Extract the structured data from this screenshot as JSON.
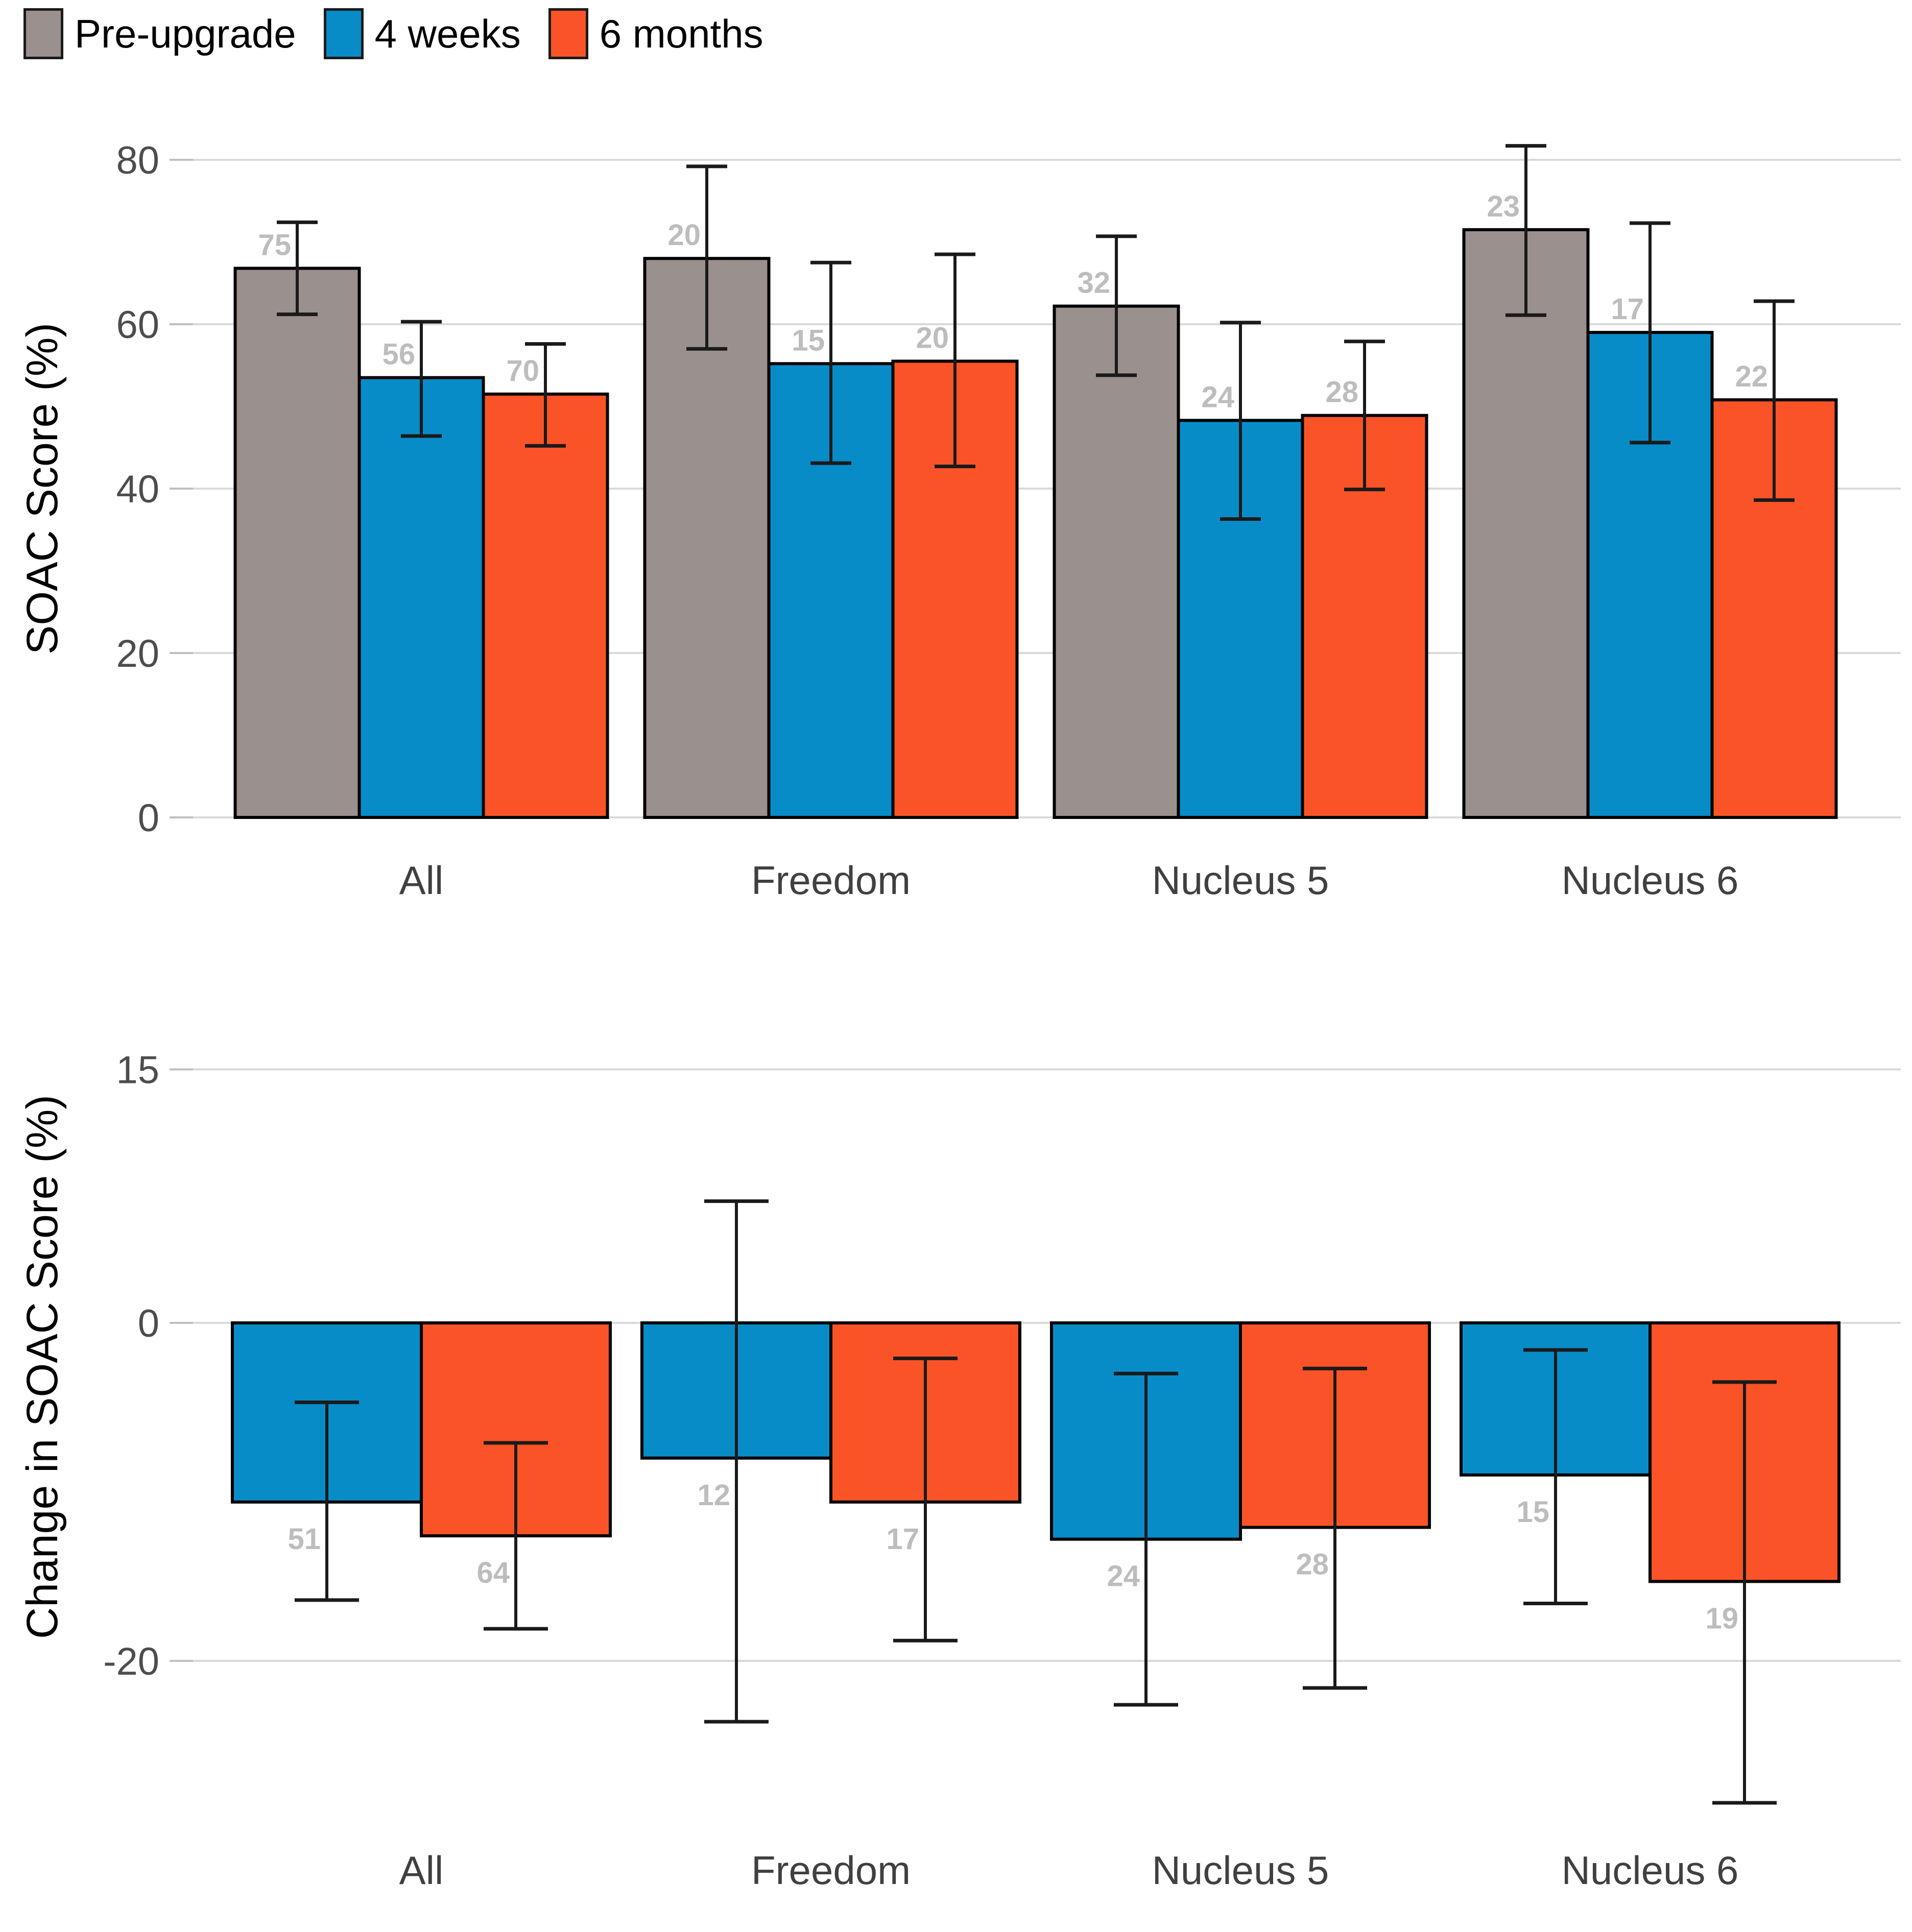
{
  "page": {
    "background": "#FFFFFF"
  },
  "legend": {
    "items": [
      {
        "label": "Pre-upgrade",
        "color": "#9A908D"
      },
      {
        "label": "4 weeks",
        "color": "#088CC8"
      },
      {
        "label": "6 months",
        "color": "#FA5327"
      }
    ]
  },
  "colors": {
    "gridline": "#D9D9D9",
    "tick_mark": "#BFBFBF",
    "tick_text": "#4D4D4D",
    "category_text": "#404040",
    "axis_title_text": "#000000",
    "bar_outline": "#000000",
    "error_bar": "#1A1A1A",
    "n_label": "#BDBDBD"
  },
  "chart_data": [
    {
      "type": "bar",
      "title": "",
      "xlabel": "",
      "ylabel": "SOAC Score (%)",
      "legend_position": "top-left",
      "grid": true,
      "categories": [
        "All",
        "Freedom",
        "Nucleus 5",
        "Nucleus 6"
      ],
      "yticks": [
        0,
        20,
        40,
        60,
        80
      ],
      "ylim": [
        0,
        85.5
      ],
      "series": [
        {
          "name": "Pre-upgrade",
          "color": "#9A908D",
          "values": [
            66.8,
            68.0,
            62.2,
            71.5
          ],
          "err_low": [
            61.2,
            57.0,
            53.8,
            61.1
          ],
          "err_high": [
            72.4,
            79.2,
            70.7,
            81.7
          ],
          "n": [
            75,
            20,
            32,
            23
          ]
        },
        {
          "name": "4 weeks",
          "color": "#088CC8",
          "values": [
            53.5,
            55.2,
            48.3,
            59.0
          ],
          "err_low": [
            46.4,
            43.1,
            36.3,
            45.6
          ],
          "err_high": [
            60.3,
            67.5,
            60.2,
            72.3
          ],
          "n": [
            56,
            15,
            24,
            17
          ]
        },
        {
          "name": "6 months",
          "color": "#FA5327",
          "values": [
            51.5,
            55.5,
            48.9,
            50.8
          ],
          "err_low": [
            45.2,
            42.7,
            39.9,
            38.6
          ],
          "err_high": [
            57.6,
            68.5,
            57.9,
            62.8
          ],
          "n": [
            70,
            20,
            28,
            22
          ]
        }
      ]
    },
    {
      "type": "bar",
      "title": "",
      "xlabel": "",
      "ylabel": "Change in SOAC Score (%)",
      "legend_position": "none",
      "grid": true,
      "categories": [
        "All",
        "Freedom",
        "Nucleus 5",
        "Nucleus 6"
      ],
      "yticks": [
        15,
        0,
        -20
      ],
      "ylim": [
        17.5,
        -33
      ],
      "series": [
        {
          "name": "4 weeks",
          "color": "#088CC8",
          "values": [
            -10.6,
            -8.0,
            -12.8,
            -9.0
          ],
          "err_low": [
            -16.4,
            -23.6,
            -22.6,
            -16.6
          ],
          "err_high": [
            -4.7,
            7.2,
            -3.0,
            -1.6
          ],
          "n": [
            51,
            12,
            24,
            15
          ]
        },
        {
          "name": "6 months",
          "color": "#FA5327",
          "values": [
            -12.6,
            -10.6,
            -12.1,
            -15.3
          ],
          "err_low": [
            -18.1,
            -18.8,
            -21.6,
            -28.4
          ],
          "err_high": [
            -7.1,
            -2.1,
            -2.7,
            -3.5
          ],
          "n": [
            64,
            17,
            28,
            19
          ]
        }
      ]
    }
  ]
}
